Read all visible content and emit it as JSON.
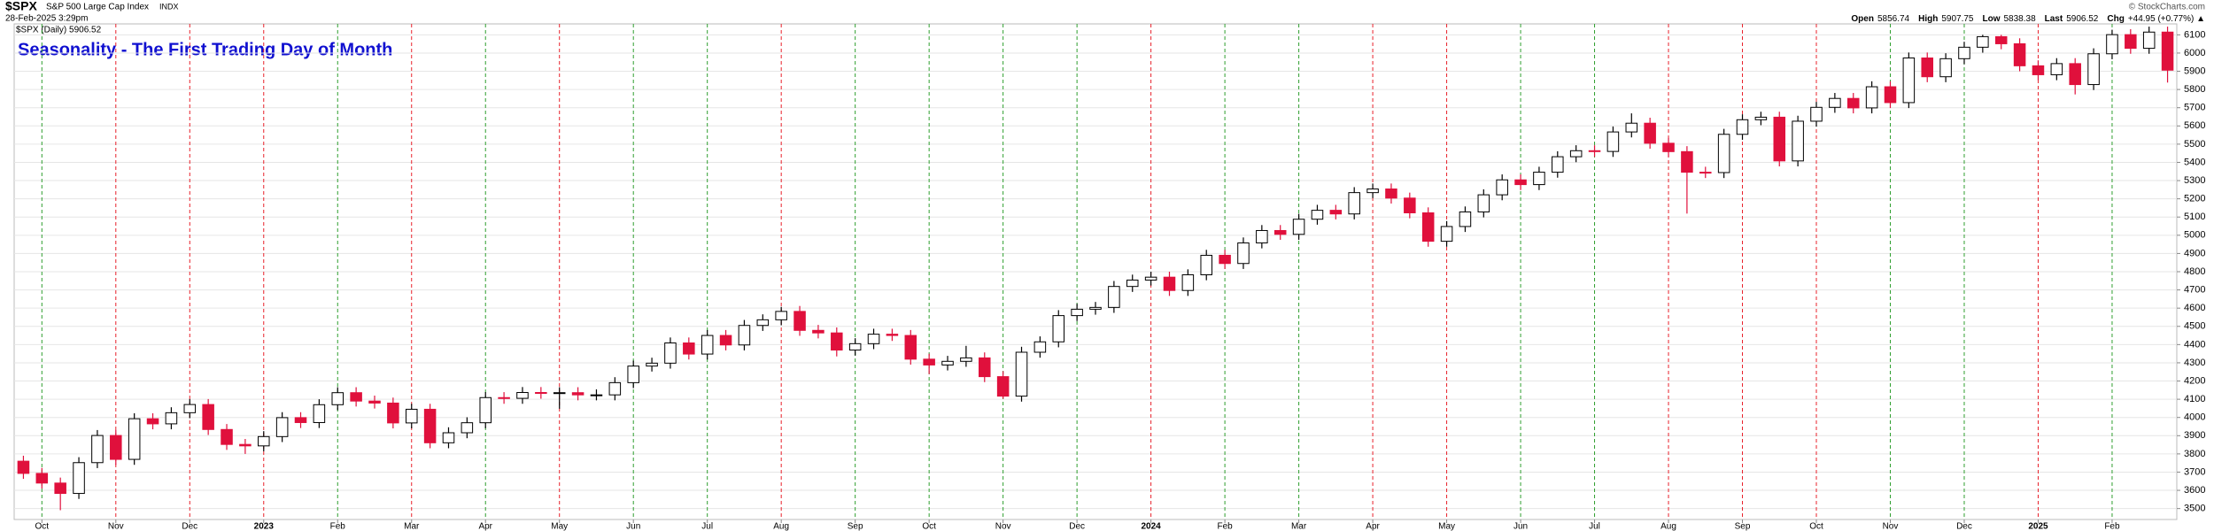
{
  "chart_data": {
    "type": "candlestick",
    "symbol": "$SPX",
    "name": "S&P 500 Large Cap Index",
    "exchange": "INDX",
    "timestamp": "28-Feb-2025 3:29pm",
    "legend": "$SPX (Daily) 5906.52",
    "title": "Seasonality - The First Trading Day of Month",
    "copyright": "© StockCharts.com",
    "quote": [
      {
        "label": "Open",
        "value": 5856.74
      },
      {
        "label": "High",
        "value": 5907.75
      },
      {
        "label": "Low",
        "value": 5838.38
      },
      {
        "label": "Last",
        "value": 5906.52
      },
      {
        "label": "Chg",
        "value": "+44.95 (+0.77%) ▲"
      }
    ],
    "up_color": "#ffffff",
    "down_color": "#e0103c",
    "wick_color": "#000000",
    "title_color": "#1010d0",
    "grid": true,
    "categories": [
      null,
      "Oct",
      null,
      null,
      null,
      "Nov",
      null,
      null,
      null,
      "Dec",
      null,
      null,
      null,
      "2023",
      null,
      null,
      null,
      "Feb",
      null,
      null,
      null,
      "Mar",
      null,
      null,
      null,
      "Apr",
      null,
      null,
      null,
      "May",
      null,
      null,
      null,
      "Jun",
      null,
      null,
      null,
      "Jul",
      null,
      null,
      null,
      "Aug",
      null,
      null,
      null,
      "Sep",
      null,
      null,
      null,
      "Oct",
      null,
      null,
      null,
      "Nov",
      null,
      null,
      null,
      "Dec",
      null,
      null,
      null,
      "2024",
      null,
      null,
      null,
      "Feb",
      null,
      null,
      null,
      "Mar",
      null,
      null,
      null,
      "Apr",
      null,
      null,
      null,
      "May",
      null,
      null,
      null,
      "Jun",
      null,
      null,
      null,
      "Jul",
      null,
      null,
      null,
      "Aug",
      null,
      null,
      null,
      "Sep",
      null,
      null,
      null,
      "Oct",
      null,
      null,
      null,
      "Nov",
      null,
      null,
      null,
      "Dec",
      null,
      null,
      null,
      "2025",
      null,
      null,
      null,
      "Feb",
      null,
      null,
      null
    ],
    "first_day_colors": [
      null,
      "#2e9e2e",
      null,
      null,
      null,
      "#e8202a",
      null,
      null,
      null,
      "#e8202a",
      null,
      null,
      null,
      "#e8202a",
      null,
      null,
      null,
      "#2e9e2e",
      null,
      null,
      null,
      "#e8202a",
      null,
      null,
      null,
      "#2e9e2e",
      null,
      null,
      null,
      "#e8202a",
      null,
      null,
      null,
      "#2e9e2e",
      null,
      null,
      null,
      "#2e9e2e",
      null,
      null,
      null,
      "#e8202a",
      null,
      null,
      null,
      "#2e9e2e",
      null,
      null,
      null,
      "#2e9e2e",
      null,
      null,
      null,
      "#2e9e2e",
      null,
      null,
      null,
      "#2e9e2e",
      null,
      null,
      null,
      "#e8202a",
      null,
      null,
      null,
      "#2e9e2e",
      null,
      null,
      null,
      "#2e9e2e",
      null,
      null,
      null,
      "#e8202a",
      null,
      null,
      null,
      "#e8202a",
      null,
      null,
      null,
      "#2e9e2e",
      null,
      null,
      null,
      "#2e9e2e",
      null,
      null,
      null,
      "#e8202a",
      null,
      null,
      null,
      "#e8202a",
      null,
      null,
      null,
      "#e8202a",
      null,
      null,
      null,
      "#2e9e2e",
      null,
      null,
      null,
      "#2e9e2e",
      null,
      null,
      null,
      "#e8202a",
      null,
      null,
      null,
      "#2e9e2e",
      null,
      null,
      null
    ],
    "open": [
      3760,
      3693,
      3640,
      3583,
      3752,
      3901,
      3770,
      3993,
      3965,
      4026,
      4071,
      3934,
      3852,
      3844,
      3895,
      3999,
      3972,
      4070,
      4136,
      4090,
      4079,
      3970,
      4045,
      3861,
      3916,
      3971,
      4109,
      4105,
      4137,
      4133,
      4136,
      4124,
      4124,
      4191,
      4282,
      4298,
      4409,
      4348,
      4450,
      4398,
      4505,
      4536,
      4582,
      4478,
      4464,
      4370,
      4405,
      4457,
      4450,
      4320,
      4288,
      4308,
      4327,
      4224,
      4117,
      4358,
      4415,
      4559,
      4594,
      4604,
      4719,
      4754,
      4770,
      4697,
      4783,
      4890,
      4845,
      4958,
      5026,
      5005,
      5088,
      5137,
      5117,
      5234,
      5254,
      5204,
      5123,
      4967,
      5048,
      5128,
      5222,
      5304,
      5278,
      5346,
      5431,
      5464,
      5460,
      5567,
      5615,
      5505,
      5459,
      5346,
      5344,
      5554,
      5634,
      5648,
      5408,
      5626,
      5702,
      5751,
      5699,
      5815,
      5728,
      5973,
      5870,
      5969,
      6032,
      6090,
      6051,
      5930,
      5881,
      5942,
      5827,
      5996,
      6101,
      6026,
      6115
    ],
    "high": [
      3790,
      3723,
      3670,
      3782,
      3931,
      3931,
      4023,
      4023,
      4056,
      4101,
      4101,
      3964,
      3882,
      3925,
      4029,
      4029,
      4100,
      4166,
      4166,
      4120,
      4109,
      4075,
      4075,
      3946,
      4001,
      4139,
      4139,
      4167,
      4167,
      4166,
      4166,
      4154,
      4221,
      4312,
      4328,
      4439,
      4439,
      4480,
      4480,
      4535,
      4566,
      4607,
      4612,
      4508,
      4494,
      4435,
      4487,
      4487,
      4480,
      4350,
      4338,
      4393,
      4357,
      4254,
      4388,
      4445,
      4589,
      4624,
      4634,
      4749,
      4784,
      4800,
      4800,
      4813,
      4920,
      4920,
      4988,
      5056,
      5056,
      5118,
      5167,
      5167,
      5264,
      5284,
      5284,
      5234,
      5153,
      5078,
      5158,
      5252,
      5334,
      5334,
      5376,
      5461,
      5494,
      5494,
      5597,
      5669,
      5645,
      5535,
      5489,
      5376,
      5584,
      5664,
      5678,
      5678,
      5656,
      5732,
      5781,
      5781,
      5845,
      5845,
      6003,
      6003,
      5999,
      6062,
      6100,
      6100,
      6081,
      5960,
      5972,
      5972,
      6026,
      6128,
      6131,
      6145,
      6145
    ],
    "low": [
      3663,
      3610,
      3491,
      3553,
      3722,
      3740,
      3740,
      3935,
      3935,
      3996,
      3904,
      3822,
      3800,
      3814,
      3865,
      3942,
      3942,
      4040,
      4060,
      4049,
      3940,
      3940,
      3831,
      3831,
      3886,
      3941,
      4075,
      4075,
      4103,
      4048,
      4094,
      4094,
      4094,
      4161,
      4252,
      4268,
      4318,
      4318,
      4368,
      4368,
      4475,
      4506,
      4448,
      4434,
      4335,
      4340,
      4375,
      4420,
      4290,
      4238,
      4258,
      4278,
      4194,
      4103,
      4087,
      4328,
      4385,
      4529,
      4564,
      4574,
      4689,
      4724,
      4667,
      4667,
      4753,
      4815,
      4815,
      4928,
      4975,
      4975,
      5058,
      5087,
      5087,
      5204,
      5174,
      5093,
      4937,
      4937,
      5018,
      5098,
      5192,
      5248,
      5248,
      5316,
      5401,
      5430,
      5430,
      5537,
      5475,
      5429,
      5119,
      5314,
      5314,
      5524,
      5604,
      5378,
      5378,
      5596,
      5672,
      5669,
      5669,
      5698,
      5698,
      5840,
      5840,
      5939,
      6002,
      6021,
      5900,
      5851,
      5851,
      5773,
      5797,
      5966,
      5996,
      5996,
      5838
    ],
    "close": [
      3693,
      3640,
      3583,
      3752,
      3901,
      3770,
      3993,
      3965,
      4026,
      4071,
      3934,
      3852,
      3844,
      3895,
      3999,
      3972,
      4070,
      4136,
      4090,
      4079,
      3970,
      4045,
      3861,
      3916,
      3971,
      4109,
      4105,
      4137,
      4133,
      4136,
      4124,
      4124,
      4191,
      4282,
      4298,
      4409,
      4348,
      4450,
      4398,
      4505,
      4536,
      4582,
      4478,
      4464,
      4370,
      4405,
      4457,
      4450,
      4320,
      4288,
      4308,
      4327,
      4224,
      4117,
      4358,
      4415,
      4559,
      4594,
      4604,
      4719,
      4754,
      4770,
      4697,
      4783,
      4890,
      4845,
      4958,
      5026,
      5005,
      5088,
      5137,
      5117,
      5234,
      5254,
      5204,
      5123,
      4967,
      5048,
      5128,
      5222,
      5304,
      5278,
      5346,
      5431,
      5464,
      5460,
      5567,
      5615,
      5505,
      5459,
      5346,
      5344,
      5554,
      5634,
      5648,
      5408,
      5626,
      5702,
      5751,
      5699,
      5815,
      5728,
      5973,
      5870,
      5969,
      6032,
      6090,
      6051,
      5930,
      5881,
      5942,
      5827,
      5996,
      6101,
      6026,
      6115,
      5906
    ],
    "ylim": [
      3440,
      6160
    ],
    "yticks": [
      3500,
      3600,
      3700,
      3800,
      3900,
      4000,
      4100,
      4200,
      4300,
      4400,
      4500,
      4600,
      4700,
      4800,
      4900,
      5000,
      5100,
      5200,
      5300,
      5400,
      5500,
      5600,
      5700,
      5800,
      5900,
      6000,
      6100
    ]
  }
}
